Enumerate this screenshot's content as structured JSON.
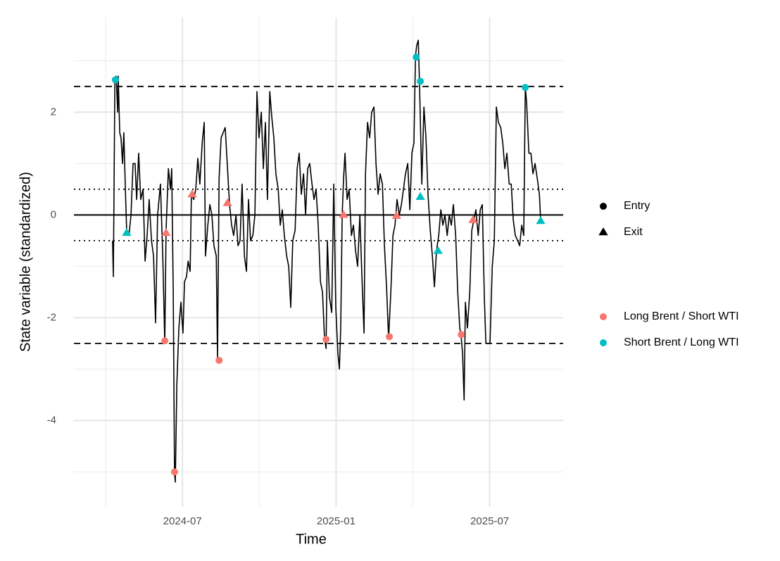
{
  "chart_data": {
    "type": "line",
    "x_label": "Time",
    "y_label": "State variable (standardized)",
    "xlim": [
      1.76,
      20.87
    ],
    "ylim": [
      -5.68,
      3.84
    ],
    "xticks": [
      {
        "value": 6,
        "label": "2024-07"
      },
      {
        "value": 12,
        "label": "2025-01"
      },
      {
        "value": 18,
        "label": "2025-07"
      }
    ],
    "x_minor_ticks": [
      3,
      9,
      15
    ],
    "yticks": [
      -4,
      -2,
      0,
      2
    ],
    "y_minor_ticks": [
      -5,
      -3,
      -1,
      1,
      3
    ],
    "grid": true,
    "hlines": [
      {
        "value": 2.5,
        "style": "dashed"
      },
      {
        "value": -2.5,
        "style": "dashed"
      },
      {
        "value": 0.5,
        "style": "dotted"
      },
      {
        "value": -0.5,
        "style": "dotted"
      },
      {
        "value": 0,
        "style": "solid"
      }
    ],
    "line": {
      "color": "#000000",
      "x": [
        3.27,
        3.3,
        3.36,
        3.41,
        3.47,
        3.49,
        3.55,
        3.6,
        3.66,
        3.71,
        3.77,
        3.82,
        3.91,
        3.99,
        4.07,
        4.15,
        4.21,
        4.29,
        4.37,
        4.46,
        4.54,
        4.62,
        4.7,
        4.79,
        4.87,
        4.95,
        5.03,
        5.14,
        5.23,
        5.31,
        5.36,
        5.45,
        5.53,
        5.58,
        5.64,
        5.69,
        5.72,
        5.78,
        5.86,
        5.94,
        6.02,
        6.08,
        6.16,
        6.22,
        6.3,
        6.35,
        6.44,
        6.52,
        6.6,
        6.68,
        6.77,
        6.85,
        6.9,
        6.99,
        7.07,
        7.15,
        7.23,
        7.32,
        7.37,
        7.43,
        7.51,
        7.59,
        7.67,
        7.76,
        7.84,
        7.92,
        8.0,
        8.09,
        8.17,
        8.25,
        8.33,
        8.42,
        8.5,
        8.58,
        8.66,
        8.75,
        8.83,
        8.91,
        8.99,
        9.08,
        9.16,
        9.24,
        9.32,
        9.41,
        9.49,
        9.57,
        9.65,
        9.74,
        9.82,
        9.9,
        9.98,
        10.07,
        10.15,
        10.23,
        10.31,
        10.4,
        10.48,
        10.56,
        10.64,
        10.73,
        10.81,
        10.89,
        10.97,
        11.06,
        11.14,
        11.22,
        11.3,
        11.39,
        11.47,
        11.55,
        11.61,
        11.66,
        11.74,
        11.83,
        11.91,
        11.99,
        12.07,
        12.13,
        12.18,
        12.24,
        12.29,
        12.35,
        12.43,
        12.51,
        12.6,
        12.68,
        12.76,
        12.84,
        12.93,
        13.01,
        13.09,
        13.15,
        13.23,
        13.31,
        13.39,
        13.48,
        13.56,
        13.64,
        13.72,
        13.81,
        13.89,
        13.97,
        14.05,
        14.14,
        14.22,
        14.3,
        14.38,
        14.47,
        14.55,
        14.63,
        14.71,
        14.8,
        14.88,
        14.96,
        15.04,
        15.1,
        15.15,
        15.21,
        15.26,
        15.35,
        15.43,
        15.51,
        15.59,
        15.68,
        15.76,
        15.84,
        15.92,
        16.01,
        16.09,
        16.17,
        16.25,
        16.34,
        16.42,
        16.5,
        16.58,
        16.67,
        16.75,
        16.83,
        16.89,
        16.94,
        17.0,
        17.05,
        17.13,
        17.22,
        17.3,
        17.38,
        17.46,
        17.55,
        17.63,
        17.71,
        17.79,
        17.85,
        18.01,
        18.1,
        18.18,
        18.26,
        18.34,
        18.43,
        18.51,
        18.59,
        18.67,
        18.76,
        18.84,
        18.92,
        19.0,
        19.09,
        19.17,
        19.25,
        19.33,
        19.39,
        19.44,
        19.53,
        19.61,
        19.69,
        19.77,
        19.86,
        19.94,
        19.99
      ],
      "values": [
        -0.5,
        -1.2,
        2.6,
        2.7,
        2.0,
        2.7,
        1.6,
        1.5,
        1.0,
        1.6,
        0.5,
        -0.3,
        -0.4,
        0.0,
        1.0,
        1.0,
        0.3,
        1.2,
        0.3,
        0.5,
        -0.9,
        -0.4,
        0.3,
        -0.5,
        -0.8,
        -2.1,
        0.0,
        0.6,
        -0.8,
        -2.5,
        -0.3,
        0.9,
        0.5,
        0.9,
        -1.5,
        -5.0,
        -5.2,
        -3.3,
        -2.2,
        -1.7,
        -2.3,
        -1.3,
        -1.2,
        -0.9,
        -1.1,
        0.4,
        0.3,
        0.5,
        1.1,
        0.6,
        1.4,
        1.8,
        -0.8,
        -0.2,
        0.2,
        0.0,
        -0.6,
        -0.8,
        -2.8,
        0.7,
        1.5,
        1.6,
        1.7,
        0.9,
        0.2,
        -0.2,
        -0.4,
        0.0,
        -0.6,
        -0.5,
        0.6,
        -0.8,
        -1.1,
        0.3,
        -0.5,
        -0.4,
        0.0,
        2.4,
        1.5,
        2.0,
        0.9,
        1.8,
        0.3,
        2.4,
        1.9,
        1.5,
        0.8,
        0.5,
        -0.2,
        0.1,
        -0.4,
        -0.8,
        -1.0,
        -1.8,
        -0.5,
        -0.3,
        0.9,
        1.2,
        0.4,
        0.8,
        0.0,
        0.9,
        1.0,
        0.6,
        0.3,
        0.5,
        -0.2,
        -1.3,
        -1.5,
        -2.4,
        -2.6,
        -0.5,
        -1.6,
        -1.9,
        0.6,
        -1.8,
        -2.7,
        -3.0,
        -2.2,
        0.0,
        0.7,
        1.2,
        0.3,
        0.5,
        -0.4,
        -0.2,
        -0.7,
        -1.0,
        0.0,
        -1.2,
        -2.3,
        0.8,
        1.8,
        1.5,
        2.0,
        2.1,
        1.0,
        0.4,
        0.8,
        0.6,
        -0.6,
        -1.4,
        -2.4,
        -1.5,
        -0.4,
        -0.2,
        0.3,
        0.0,
        0.2,
        0.5,
        0.8,
        1.0,
        0.1,
        1.2,
        1.4,
        3.1,
        3.3,
        3.4,
        2.5,
        0.6,
        2.1,
        1.5,
        0.4,
        -0.3,
        -0.8,
        -1.4,
        -0.7,
        -0.4,
        0.1,
        -0.2,
        0.0,
        -0.4,
        0.0,
        -0.2,
        0.2,
        -0.4,
        -1.5,
        -2.2,
        -2.4,
        -2.7,
        -3.6,
        -1.7,
        -2.2,
        -1.5,
        -0.3,
        -0.1,
        0.1,
        -0.4,
        0.1,
        0.2,
        -1.6,
        -2.5,
        -2.5,
        -1.0,
        -0.5,
        2.1,
        1.8,
        1.7,
        1.4,
        0.9,
        1.2,
        0.6,
        0.6,
        -0.1,
        -0.4,
        -0.5,
        -0.6,
        -0.2,
        -0.4,
        2.5,
        2.2,
        1.2,
        1.2,
        0.8,
        1.0,
        0.7,
        0.4,
        -0.1
      ]
    },
    "shapes": [
      {
        "name": "Entry",
        "shape": "circle"
      },
      {
        "name": "Exit",
        "shape": "triangle"
      }
    ],
    "series": [
      {
        "name": "Long Brent / Short WTI",
        "color": "#F8766D",
        "x": [
          5.31,
          5.36,
          5.69,
          6.38,
          7.43,
          7.76,
          11.61,
          12.29,
          14.08,
          14.36,
          16.89,
          17.35
        ],
        "values": [
          -2.45,
          -0.35,
          -5.0,
          0.4,
          -2.83,
          0.23,
          -2.42,
          0.0,
          -2.37,
          -0.02,
          -2.33,
          -0.1
        ],
        "shape_index": [
          0,
          1,
          0,
          1,
          0,
          1,
          0,
          1,
          0,
          1,
          0,
          1
        ]
      },
      {
        "name": "Short Brent / Long WTI",
        "color": "#00BFC4",
        "x": [
          3.38,
          3.82,
          15.13,
          15.29,
          15.29,
          15.98,
          19.39,
          19.99
        ],
        "values": [
          2.63,
          -0.35,
          3.07,
          2.6,
          0.35,
          -0.7,
          2.48,
          -0.12
        ],
        "shape_index": [
          0,
          1,
          0,
          0,
          1,
          1,
          0,
          1
        ]
      }
    ],
    "legend_position": "right"
  }
}
